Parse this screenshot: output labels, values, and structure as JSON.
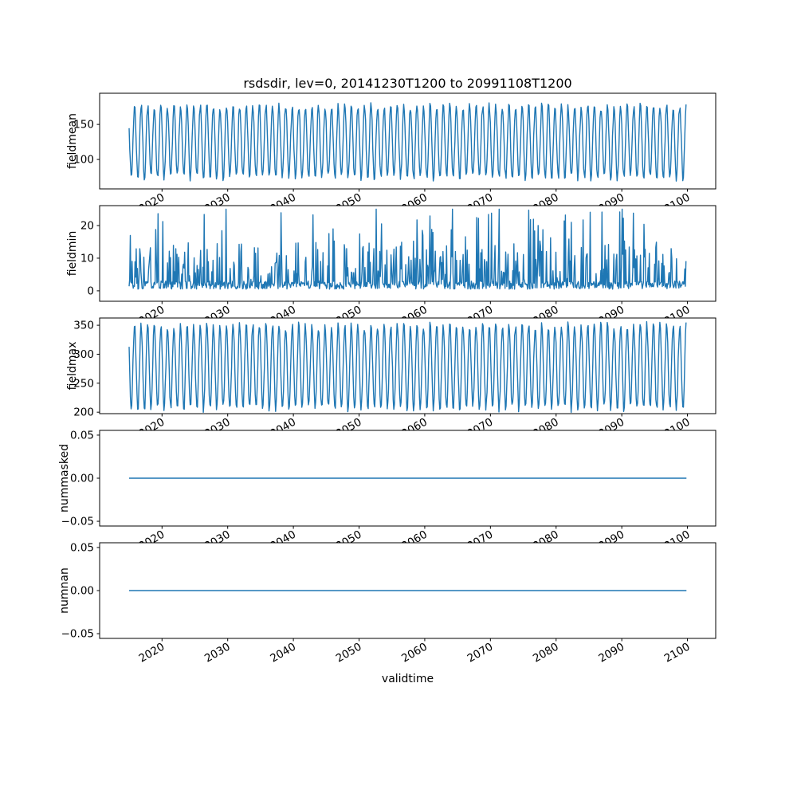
{
  "figure": {
    "background": "#ffffff",
    "line_color": "#1f77b4",
    "frame_color": "#000000"
  },
  "chart_data": {
    "type": "line",
    "title": "rsdsdir, lev=0, 20141230T1200 to 20991108T1200",
    "xlabel": "validtime",
    "x_range": [
      2014.99,
      2099.85
    ],
    "xlim": [
      2010.5,
      2104.3
    ],
    "xticks": [
      2020,
      2030,
      2040,
      2050,
      2060,
      2070,
      2080,
      2090,
      2100
    ],
    "grid": false,
    "legend": "none",
    "subplots": [
      {
        "ylabel": "fieldmean",
        "ylim": [
          58,
          194.5
        ],
        "yticks": [
          100,
          150
        ],
        "ytick_labels": [
          "100",
          "150"
        ],
        "series": {
          "kind": "seasonal",
          "mean": 125,
          "amplitude": 51,
          "noise": 6,
          "phase": 0.4167,
          "min": 64,
          "max": 188,
          "step": 0.1,
          "period_years": 1,
          "seed": 7
        }
      },
      {
        "ylabel": "fieldmin",
        "ylim": [
          -3.2,
          26.1
        ],
        "yticks": [
          0,
          10,
          20
        ],
        "ytick_labels": [
          "0",
          "10",
          "20"
        ],
        "series": {
          "kind": "spiky",
          "base": 0.5,
          "jitter": 2.5,
          "p_high": 0.055,
          "high_min": 12,
          "high_max": 24,
          "p_mid": 0.32,
          "mid_min": 2.5,
          "mid_max": 12.5,
          "max": 25,
          "step": 0.09,
          "seed": 13
        }
      },
      {
        "ylabel": "fieldmax",
        "ylim": [
          197.5,
          362.5
        ],
        "yticks": [
          200,
          250,
          300,
          350
        ],
        "ytick_labels": [
          "200",
          "250",
          "300",
          "350"
        ],
        "series": {
          "kind": "seasonal",
          "mean": 278,
          "amplitude": 72,
          "noise": 8,
          "phase": 0.4167,
          "min": 196,
          "max": 358,
          "step": 0.1,
          "period_years": 1,
          "seed": 21
        }
      },
      {
        "ylabel": "nummasked",
        "ylim": [
          -0.0555,
          0.0555
        ],
        "yticks": [
          -0.05,
          0.0,
          0.05
        ],
        "ytick_labels": [
          "−0.05",
          "0.00",
          "0.05"
        ],
        "series": {
          "kind": "constant",
          "value": 0
        }
      },
      {
        "ylabel": "numnan",
        "ylim": [
          -0.0555,
          0.0555
        ],
        "yticks": [
          -0.05,
          0.0,
          0.05
        ],
        "ytick_labels": [
          "−0.05",
          "0.00",
          "0.05"
        ],
        "series": {
          "kind": "constant",
          "value": 0
        }
      }
    ]
  }
}
